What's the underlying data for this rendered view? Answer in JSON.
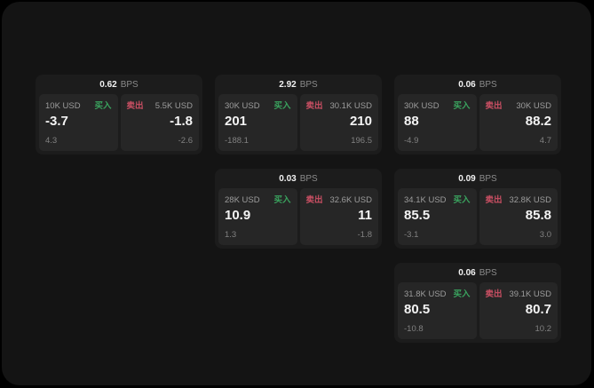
{
  "labels": {
    "bps": "BPS",
    "buy": "买入",
    "sell": "卖出"
  },
  "colors": {
    "buy": "#3aa25e",
    "sell": "#c94f63"
  },
  "cards": [
    {
      "bps": "0.62",
      "buy": {
        "amount": "10K USD",
        "value": "-3.7",
        "sub": "4.3"
      },
      "sell": {
        "amount": "5.5K USD",
        "value": "-1.8",
        "sub": "-2.6"
      }
    },
    {
      "bps": "2.92",
      "buy": {
        "amount": "30K USD",
        "value": "201",
        "sub": "-188.1"
      },
      "sell": {
        "amount": "30.1K USD",
        "value": "210",
        "sub": "196.5"
      }
    },
    {
      "bps": "0.06",
      "buy": {
        "amount": "30K USD",
        "value": "88",
        "sub": "-4.9"
      },
      "sell": {
        "amount": "30K USD",
        "value": "88.2",
        "sub": "4.7"
      }
    },
    {
      "bps": "0.03",
      "buy": {
        "amount": "28K USD",
        "value": "10.9",
        "sub": "1.3"
      },
      "sell": {
        "amount": "32.6K USD",
        "value": "11",
        "sub": "-1.8"
      }
    },
    {
      "bps": "0.09",
      "buy": {
        "amount": "34.1K USD",
        "value": "85.5",
        "sub": "-3.1"
      },
      "sell": {
        "amount": "32.8K USD",
        "value": "85.8",
        "sub": "3.0"
      }
    },
    {
      "bps": "0.06",
      "buy": {
        "amount": "31.8K USD",
        "value": "80.5",
        "sub": "-10.8"
      },
      "sell": {
        "amount": "39.1K USD",
        "value": "80.7",
        "sub": "10.2"
      }
    }
  ]
}
